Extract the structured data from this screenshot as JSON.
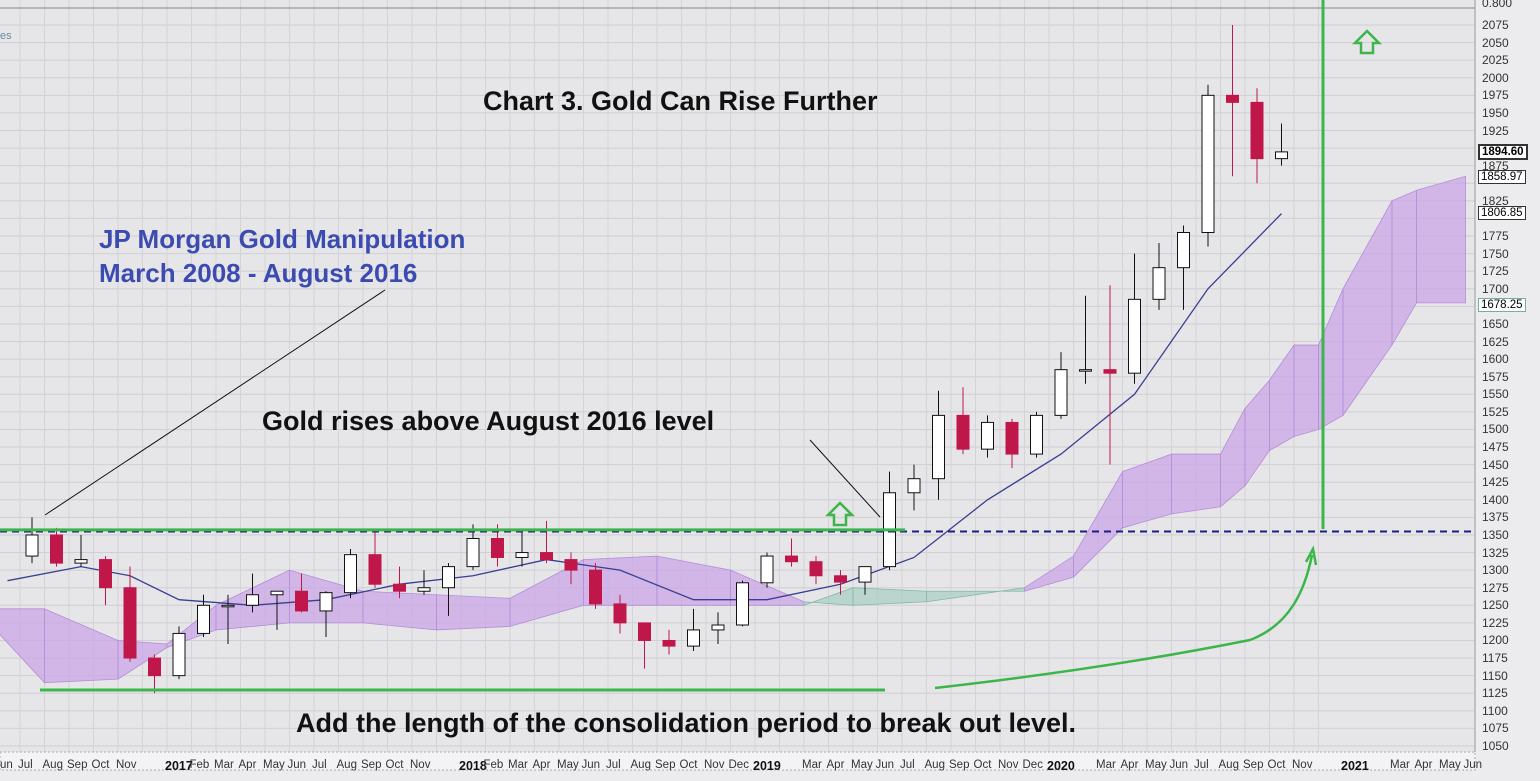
{
  "annotations": {
    "title": "Chart 3.  Gold Can Rise Further",
    "jp_line1": "JP Morgan Gold Manipulation",
    "jp_line2": "March 2008 - August 2016",
    "breakout": "Gold rises above August 2016 level",
    "projection": "Add the length of the consolidation period to break out level.",
    "corner_fragment": "es",
    "top_axis_fragment": "0.800"
  },
  "price_labels": [
    {
      "value": "1894.60",
      "style": "bold"
    },
    {
      "value": "1858.97",
      "style": "normal"
    },
    {
      "value": "1806.85",
      "style": "normal"
    },
    {
      "value": "1678.25",
      "style": "normal"
    }
  ],
  "colors": {
    "bullish": "#ffffff",
    "bearish": "#c0174a",
    "ma_line": "#3a3f8f",
    "cloud_bull": "#c9a6e6",
    "cloud_bear": "#a9cfc3",
    "annotation_green": "#3cb54a",
    "dashed_line": "#1a1f80",
    "jp_text": "#3b4bb0"
  },
  "chart_data": {
    "type": "candlestick",
    "title": "Chart 3.  Gold Can Rise Further",
    "ylim": [
      1040,
      2085
    ],
    "yticks": [
      1050,
      1075,
      1100,
      1125,
      1150,
      1175,
      1200,
      1225,
      1250,
      1275,
      1300,
      1325,
      1350,
      1375,
      1400,
      1425,
      1450,
      1475,
      1500,
      1525,
      1550,
      1575,
      1600,
      1625,
      1650,
      1675,
      1700,
      1725,
      1750,
      1775,
      1800,
      1825,
      1850,
      1875,
      1900,
      1925,
      1950,
      1975,
      2000,
      2025,
      2050,
      2075
    ],
    "ytick_labels": [
      "1050",
      "1075",
      "1100",
      "1125",
      "1150",
      "1175",
      "1200",
      "1225",
      "1250",
      "1275",
      "1300",
      "1325",
      "1350",
      "1375",
      "1400",
      "1425",
      "1450",
      "1475",
      "1500",
      "1525",
      "1550",
      "1575",
      "1600",
      "1625",
      "1650",
      "1700",
      "1725",
      "1750",
      "1775",
      "1825",
      "1875",
      "1925",
      "1950",
      "1975",
      "2000",
      "2025",
      "2050",
      "2075"
    ],
    "xtick_labels": [
      {
        "label": "un",
        "date": "2016-06",
        "year": false
      },
      {
        "label": "Jul",
        "date": "2016-07"
      },
      {
        "label": "Aug",
        "date": "2016-08"
      },
      {
        "label": "Sep",
        "date": "2016-09"
      },
      {
        "label": "Oct",
        "date": "2016-10"
      },
      {
        "label": "Nov",
        "date": "2016-11"
      },
      {
        "label": "2017",
        "date": "2017-01",
        "year": true
      },
      {
        "label": "Feb",
        "date": "2017-02"
      },
      {
        "label": "Mar",
        "date": "2017-03"
      },
      {
        "label": "Apr",
        "date": "2017-04"
      },
      {
        "label": "May",
        "date": "2017-05"
      },
      {
        "label": "Jun",
        "date": "2017-06"
      },
      {
        "label": "Jul",
        "date": "2017-07"
      },
      {
        "label": "Aug",
        "date": "2017-08"
      },
      {
        "label": "Sep",
        "date": "2017-09"
      },
      {
        "label": "Oct",
        "date": "2017-10"
      },
      {
        "label": "Nov",
        "date": "2017-11"
      },
      {
        "label": "2018",
        "date": "2018-01",
        "year": true
      },
      {
        "label": "Feb",
        "date": "2018-02"
      },
      {
        "label": "Mar",
        "date": "2018-03"
      },
      {
        "label": "Apr",
        "date": "2018-04"
      },
      {
        "label": "May",
        "date": "2018-05"
      },
      {
        "label": "Jun",
        "date": "2018-06"
      },
      {
        "label": "Jul",
        "date": "2018-07"
      },
      {
        "label": "Aug",
        "date": "2018-08"
      },
      {
        "label": "Sep",
        "date": "2018-09"
      },
      {
        "label": "Oct",
        "date": "2018-10"
      },
      {
        "label": "Nov",
        "date": "2018-11"
      },
      {
        "label": "Dec",
        "date": "2018-12"
      },
      {
        "label": "2019",
        "date": "2019-01",
        "year": true
      },
      {
        "label": "Mar",
        "date": "2019-03"
      },
      {
        "label": "Apr",
        "date": "2019-04"
      },
      {
        "label": "May",
        "date": "2019-05"
      },
      {
        "label": "Jun",
        "date": "2019-06"
      },
      {
        "label": "Jul",
        "date": "2019-07"
      },
      {
        "label": "Aug",
        "date": "2019-08"
      },
      {
        "label": "Sep",
        "date": "2019-09"
      },
      {
        "label": "Oct",
        "date": "2019-10"
      },
      {
        "label": "Nov",
        "date": "2019-11"
      },
      {
        "label": "Dec",
        "date": "2019-12"
      },
      {
        "label": "2020",
        "date": "2020-01",
        "year": true
      },
      {
        "label": "Mar",
        "date": "2020-03"
      },
      {
        "label": "Apr",
        "date": "2020-04"
      },
      {
        "label": "May",
        "date": "2020-05"
      },
      {
        "label": "Jun",
        "date": "2020-06"
      },
      {
        "label": "Jul",
        "date": "2020-07"
      },
      {
        "label": "Aug",
        "date": "2020-08"
      },
      {
        "label": "Sep",
        "date": "2020-09"
      },
      {
        "label": "Oct",
        "date": "2020-10"
      },
      {
        "label": "Nov",
        "date": "2020-11"
      },
      {
        "label": "2021",
        "date": "2021-01",
        "year": true
      },
      {
        "label": "Mar",
        "date": "2021-03"
      },
      {
        "label": "Apr",
        "date": "2021-04"
      },
      {
        "label": "May",
        "date": "2021-05"
      },
      {
        "label": "Jun",
        "date": "2021-06"
      }
    ],
    "candles": [
      {
        "date": "2016-07",
        "o": 1320,
        "h": 1375,
        "l": 1310,
        "c": 1350
      },
      {
        "date": "2016-08",
        "o": 1350,
        "h": 1360,
        "l": 1305,
        "c": 1310
      },
      {
        "date": "2016-09",
        "o": 1310,
        "h": 1350,
        "l": 1305,
        "c": 1315
      },
      {
        "date": "2016-10",
        "o": 1315,
        "h": 1320,
        "l": 1250,
        "c": 1275
      },
      {
        "date": "2016-11",
        "o": 1275,
        "h": 1305,
        "l": 1170,
        "c": 1175
      },
      {
        "date": "2016-12",
        "o": 1175,
        "h": 1180,
        "l": 1125,
        "c": 1150
      },
      {
        "date": "2017-01",
        "o": 1150,
        "h": 1220,
        "l": 1145,
        "c": 1210
      },
      {
        "date": "2017-02",
        "o": 1210,
        "h": 1265,
        "l": 1205,
        "c": 1250
      },
      {
        "date": "2017-03",
        "o": 1250,
        "h": 1265,
        "l": 1195,
        "c": 1250
      },
      {
        "date": "2017-04",
        "o": 1250,
        "h": 1295,
        "l": 1240,
        "c": 1265
      },
      {
        "date": "2017-05",
        "o": 1265,
        "h": 1270,
        "l": 1215,
        "c": 1270
      },
      {
        "date": "2017-06",
        "o": 1270,
        "h": 1295,
        "l": 1240,
        "c": 1242
      },
      {
        "date": "2017-07",
        "o": 1242,
        "h": 1270,
        "l": 1205,
        "c": 1268
      },
      {
        "date": "2017-08",
        "o": 1268,
        "h": 1330,
        "l": 1260,
        "c": 1322
      },
      {
        "date": "2017-09",
        "o": 1322,
        "h": 1357,
        "l": 1275,
        "c": 1280
      },
      {
        "date": "2017-10",
        "o": 1280,
        "h": 1305,
        "l": 1260,
        "c": 1270
      },
      {
        "date": "2017-11",
        "o": 1270,
        "h": 1300,
        "l": 1265,
        "c": 1275
      },
      {
        "date": "2017-12",
        "o": 1275,
        "h": 1310,
        "l": 1235,
        "c": 1305
      },
      {
        "date": "2018-01",
        "o": 1305,
        "h": 1365,
        "l": 1300,
        "c": 1345
      },
      {
        "date": "2018-02",
        "o": 1345,
        "h": 1365,
        "l": 1305,
        "c": 1318
      },
      {
        "date": "2018-03",
        "o": 1318,
        "h": 1355,
        "l": 1305,
        "c": 1325
      },
      {
        "date": "2018-04",
        "o": 1325,
        "h": 1370,
        "l": 1310,
        "c": 1315
      },
      {
        "date": "2018-05",
        "o": 1315,
        "h": 1325,
        "l": 1280,
        "c": 1300
      },
      {
        "date": "2018-06",
        "o": 1300,
        "h": 1310,
        "l": 1245,
        "c": 1252
      },
      {
        "date": "2018-07",
        "o": 1252,
        "h": 1265,
        "l": 1210,
        "c": 1225
      },
      {
        "date": "2018-08",
        "o": 1225,
        "h": 1220,
        "l": 1160,
        "c": 1200
      },
      {
        "date": "2018-09",
        "o": 1200,
        "h": 1215,
        "l": 1180,
        "c": 1192
      },
      {
        "date": "2018-10",
        "o": 1192,
        "h": 1245,
        "l": 1185,
        "c": 1215
      },
      {
        "date": "2018-11",
        "o": 1215,
        "h": 1240,
        "l": 1195,
        "c": 1222
      },
      {
        "date": "2018-12",
        "o": 1222,
        "h": 1285,
        "l": 1220,
        "c": 1282
      },
      {
        "date": "2019-01",
        "o": 1282,
        "h": 1325,
        "l": 1275,
        "c": 1320
      },
      {
        "date": "2019-02",
        "o": 1320,
        "h": 1345,
        "l": 1305,
        "c": 1312
      },
      {
        "date": "2019-03",
        "o": 1312,
        "h": 1320,
        "l": 1280,
        "c": 1292
      },
      {
        "date": "2019-04",
        "o": 1292,
        "h": 1300,
        "l": 1265,
        "c": 1283
      },
      {
        "date": "2019-05",
        "o": 1283,
        "h": 1305,
        "l": 1265,
        "c": 1305
      },
      {
        "date": "2019-06",
        "o": 1305,
        "h": 1440,
        "l": 1300,
        "c": 1410
      },
      {
        "date": "2019-07",
        "o": 1410,
        "h": 1450,
        "l": 1385,
        "c": 1430
      },
      {
        "date": "2019-08",
        "o": 1430,
        "h": 1555,
        "l": 1400,
        "c": 1520
      },
      {
        "date": "2019-09",
        "o": 1520,
        "h": 1560,
        "l": 1465,
        "c": 1472
      },
      {
        "date": "2019-10",
        "o": 1472,
        "h": 1520,
        "l": 1460,
        "c": 1510
      },
      {
        "date": "2019-11",
        "o": 1510,
        "h": 1515,
        "l": 1445,
        "c": 1465
      },
      {
        "date": "2019-12",
        "o": 1465,
        "h": 1525,
        "l": 1460,
        "c": 1520
      },
      {
        "date": "2020-01",
        "o": 1520,
        "h": 1610,
        "l": 1515,
        "c": 1585
      },
      {
        "date": "2020-02",
        "o": 1585,
        "h": 1690,
        "l": 1565,
        "c": 1585
      },
      {
        "date": "2020-03",
        "o": 1585,
        "h": 1705,
        "l": 1450,
        "c": 1580
      },
      {
        "date": "2020-04",
        "o": 1580,
        "h": 1750,
        "l": 1565,
        "c": 1685
      },
      {
        "date": "2020-05",
        "o": 1685,
        "h": 1765,
        "l": 1670,
        "c": 1730
      },
      {
        "date": "2020-06",
        "o": 1730,
        "h": 1790,
        "l": 1670,
        "c": 1780
      },
      {
        "date": "2020-07",
        "o": 1780,
        "h": 1990,
        "l": 1760,
        "c": 1975
      },
      {
        "date": "2020-08",
        "o": 1975,
        "h": 2075,
        "l": 1860,
        "c": 1965
      },
      {
        "date": "2020-09",
        "o": 1965,
        "h": 1985,
        "l": 1850,
        "c": 1885
      },
      {
        "date": "2020-10",
        "o": 1885,
        "h": 1935,
        "l": 1875,
        "c": 1894.6
      }
    ],
    "moving_average": [
      {
        "date": "2016-06",
        "v": 1285
      },
      {
        "date": "2016-09",
        "v": 1305
      },
      {
        "date": "2016-11",
        "v": 1292
      },
      {
        "date": "2017-01",
        "v": 1258
      },
      {
        "date": "2017-04",
        "v": 1250
      },
      {
        "date": "2017-07",
        "v": 1258
      },
      {
        "date": "2017-10",
        "v": 1280
      },
      {
        "date": "2018-01",
        "v": 1292
      },
      {
        "date": "2018-04",
        "v": 1315
      },
      {
        "date": "2018-07",
        "v": 1300
      },
      {
        "date": "2018-10",
        "v": 1258
      },
      {
        "date": "2019-01",
        "v": 1258
      },
      {
        "date": "2019-04",
        "v": 1280
      },
      {
        "date": "2019-07",
        "v": 1318
      },
      {
        "date": "2019-10",
        "v": 1400
      },
      {
        "date": "2020-01",
        "v": 1465
      },
      {
        "date": "2020-04",
        "v": 1550
      },
      {
        "date": "2020-07",
        "v": 1700
      },
      {
        "date": "2020-10",
        "v": 1806.85
      }
    ],
    "cloud": [
      {
        "date": "2016-06",
        "a": 1215,
        "b": 1245
      },
      {
        "date": "2016-08",
        "a": 1140,
        "b": 1245
      },
      {
        "date": "2016-11",
        "a": 1145,
        "b": 1200
      },
      {
        "date": "2017-01",
        "a": 1190,
        "b": 1195
      },
      {
        "date": "2017-03",
        "a": 1215,
        "b": 1250
      },
      {
        "date": "2017-06",
        "a": 1225,
        "b": 1300
      },
      {
        "date": "2017-09",
        "a": 1225,
        "b": 1270
      },
      {
        "date": "2017-12",
        "a": 1215,
        "b": 1265
      },
      {
        "date": "2018-03",
        "a": 1220,
        "b": 1260
      },
      {
        "date": "2018-06",
        "a": 1250,
        "b": 1315
      },
      {
        "date": "2018-09",
        "a": 1250,
        "b": 1320
      },
      {
        "date": "2018-12",
        "a": 1250,
        "b": 1300
      },
      {
        "date": "2019-03",
        "a": 1250,
        "b": 1255
      },
      {
        "date": "2019-05",
        "a": 1275,
        "b": 1250
      },
      {
        "date": "2019-08",
        "a": 1270,
        "b": 1255
      },
      {
        "date": "2019-12",
        "a": 1270,
        "b": 1275
      },
      {
        "date": "2020-02",
        "a": 1290,
        "b": 1320
      },
      {
        "date": "2020-04",
        "a": 1360,
        "b": 1440
      },
      {
        "date": "2020-06",
        "a": 1380,
        "b": 1465
      },
      {
        "date": "2020-08",
        "a": 1390,
        "b": 1465
      },
      {
        "date": "2020-09",
        "a": 1420,
        "b": 1530
      },
      {
        "date": "2020-10",
        "a": 1470,
        "b": 1570
      },
      {
        "date": "2020-11",
        "a": 1490,
        "b": 1620
      },
      {
        "date": "2020-12",
        "a": 1500,
        "b": 1620
      },
      {
        "date": "2021-01",
        "a": 1520,
        "b": 1700
      },
      {
        "date": "2021-03",
        "a": 1620,
        "b": 1825
      },
      {
        "date": "2021-04",
        "a": 1680,
        "b": 1840
      },
      {
        "date": "2021-06",
        "a": 1680,
        "b": 1860
      }
    ],
    "reference_lines": {
      "breakout_level": 1360,
      "consolidation_low": 1130,
      "dashed_level": 1355,
      "projection_date": "2020-12"
    }
  }
}
